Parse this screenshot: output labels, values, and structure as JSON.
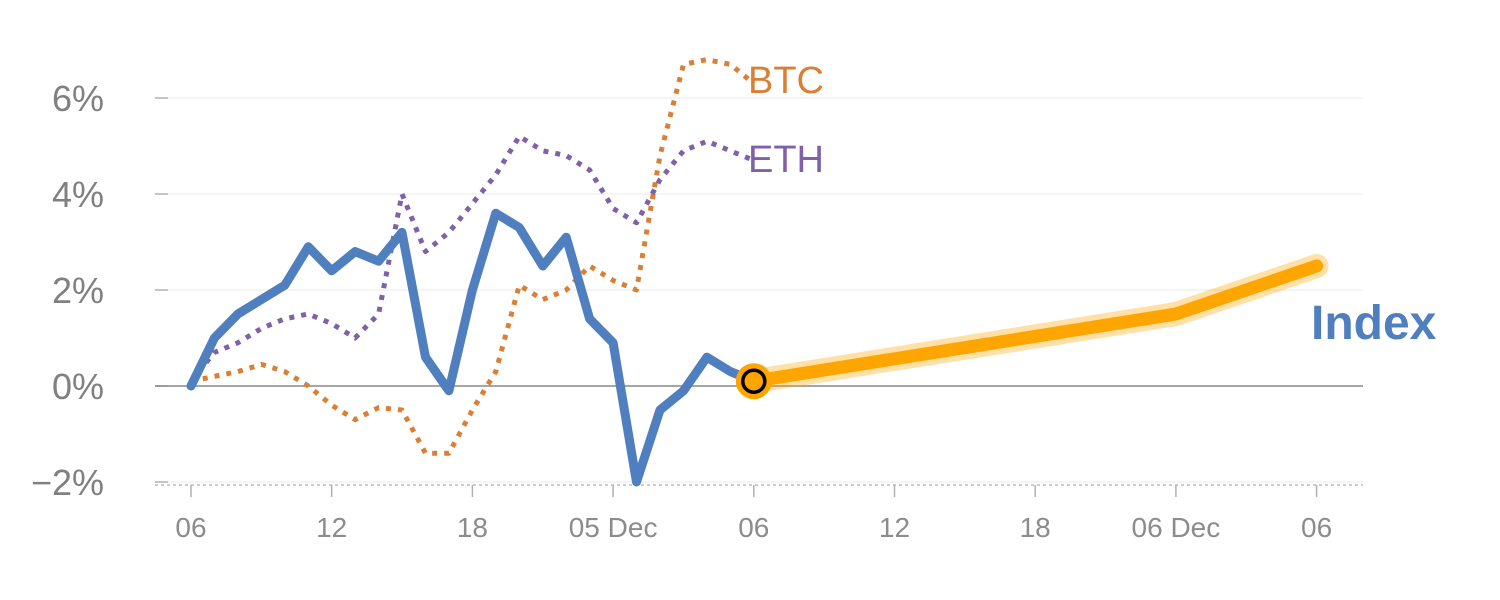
{
  "chart_data": {
    "type": "line",
    "title": "",
    "xlabel": "",
    "ylabel": "",
    "ylim": [
      -2,
      7
    ],
    "y_ticks": [
      -2,
      0,
      2,
      4,
      6
    ],
    "y_tick_labels": [
      "−2%",
      "0%",
      "2%",
      "4%",
      "6%"
    ],
    "x_ticks": [
      0,
      6,
      12,
      18,
      24,
      30,
      36,
      42,
      48
    ],
    "x_tick_labels": [
      "06",
      "12",
      "18",
      "05 Dec",
      "06",
      "12",
      "18",
      "06 Dec",
      "06"
    ],
    "grid": true,
    "series": [
      {
        "name": "BTC",
        "style": "dotted",
        "color": "#d97f36",
        "x": [
          0,
          1,
          2,
          3,
          4,
          5,
          6,
          7,
          8,
          9,
          10,
          11,
          12,
          13,
          14,
          15,
          16,
          17,
          18,
          19,
          20,
          21,
          22,
          23,
          24
        ],
        "values": [
          0.1,
          0.2,
          0.3,
          0.45,
          0.3,
          0.0,
          -0.4,
          -0.7,
          -0.45,
          -0.5,
          -1.4,
          -1.4,
          -0.5,
          0.3,
          2.1,
          1.8,
          2.0,
          2.5,
          2.2,
          2.0,
          4.8,
          6.7,
          6.8,
          6.7,
          6.3
        ]
      },
      {
        "name": "ETH",
        "style": "dotted",
        "color": "#8060a8",
        "x": [
          0,
          1,
          2,
          3,
          4,
          5,
          6,
          7,
          8,
          9,
          10,
          11,
          12,
          13,
          14,
          15,
          16,
          17,
          18,
          19,
          20,
          21,
          22,
          23,
          24
        ],
        "values": [
          0.1,
          0.7,
          0.9,
          1.2,
          1.4,
          1.5,
          1.3,
          1.0,
          1.5,
          4.0,
          2.8,
          3.2,
          3.8,
          4.4,
          5.2,
          4.9,
          4.8,
          4.5,
          3.7,
          3.4,
          4.3,
          4.9,
          5.1,
          4.9,
          4.7
        ]
      },
      {
        "name": "Index",
        "style": "solid",
        "color": "#4f7fbf",
        "x": [
          0,
          1,
          2,
          3,
          4,
          5,
          6,
          7,
          8,
          9,
          10,
          11,
          12,
          13,
          14,
          15,
          16,
          17,
          18,
          19,
          20,
          21,
          22,
          23,
          24
        ],
        "values": [
          0.0,
          1.0,
          1.5,
          1.8,
          2.1,
          2.9,
          2.4,
          2.8,
          2.6,
          3.2,
          0.6,
          -0.1,
          2.0,
          3.6,
          3.3,
          2.5,
          3.1,
          1.4,
          0.9,
          -2.0,
          -0.5,
          -0.1,
          0.6,
          0.3,
          0.1
        ]
      },
      {
        "name": "",
        "role": "forecast",
        "style": "solid",
        "color": "#ffa500",
        "x": [
          24,
          42,
          48
        ],
        "values": [
          0.1,
          1.5,
          2.5
        ]
      }
    ],
    "labels": {
      "btc": "BTC",
      "eth": "ETH",
      "index": "Index"
    },
    "highlight_point": {
      "x": 24,
      "y": 0.1
    }
  }
}
